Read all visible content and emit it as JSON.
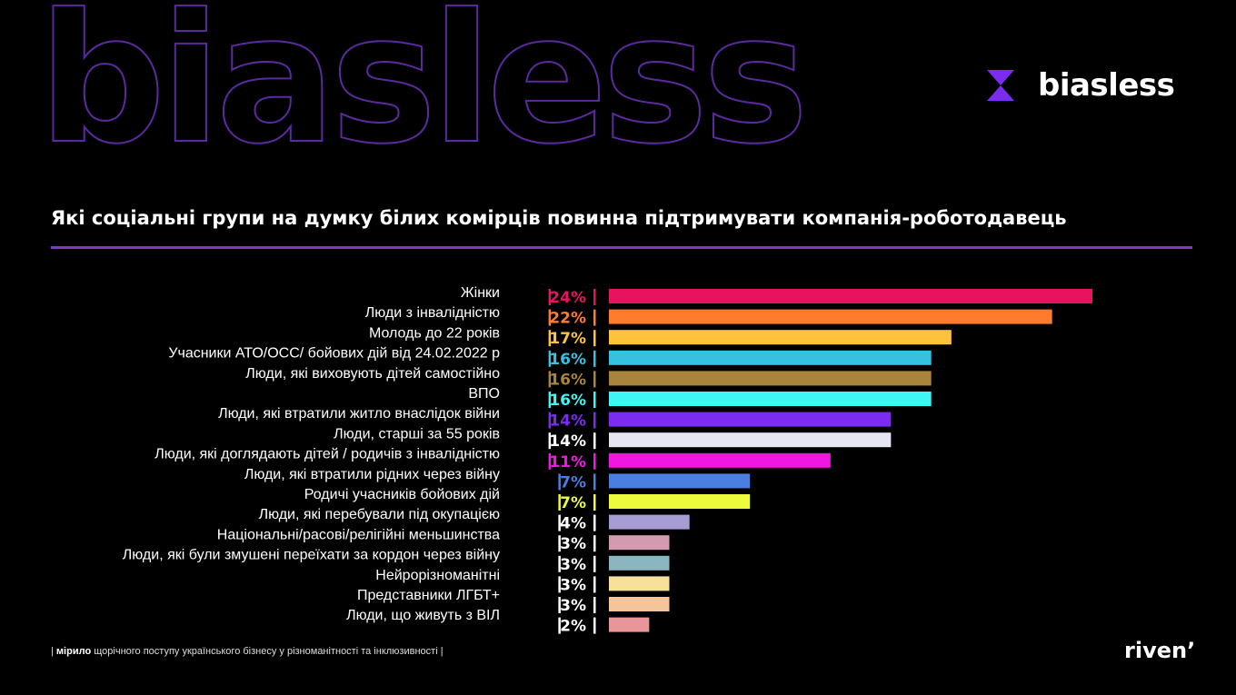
{
  "brand": {
    "wordmark": "biasless",
    "logo_text": "biasless",
    "logo_color": "#7b2cf0"
  },
  "title": "Які соціальні групи на думку білих комірців повинна підтримувати компанія-роботодавець",
  "footer": {
    "pipe_open": "|",
    "bold": "мірило",
    "text": "щорічного поступу українського бізнесу у різноманітності та інклюзивності",
    "pipe_close": "|"
  },
  "partner": "riven’",
  "chart_data": {
    "type": "bar",
    "orientation": "horizontal",
    "unit": "%",
    "xlim": [
      0,
      24
    ],
    "grid": false,
    "categories": [
      "Жінки",
      "Люди з інвалідністю",
      "Молодь до 22 років",
      "Учасники АТО/ОСС/ бойових дій від 24.02.2022 р",
      "Люди, які виховують дітей самостійно",
      "ВПО",
      "Люди, які втратили житло внаслідок війни",
      "Люди, старші за 55 років",
      "Люди, які доглядають дітей / родичів з інвалідністю",
      "Люди, які втратили рідних через війну",
      "Родичі учасників бойових дій",
      "Люди, які перебували під окупацією",
      "Національні/расові/релігійні меньшинства",
      "Люди, які були змушені переїхати за кордон через війну",
      "Нейрорізноманітні",
      "Представники ЛГБТ+",
      "Люди, що живуть з ВІЛ"
    ],
    "values": [
      24,
      22,
      17,
      16,
      16,
      16,
      14,
      14,
      11,
      7,
      7,
      4,
      3,
      3,
      3,
      3,
      2
    ],
    "value_labels": [
      "24%",
      "22%",
      "17%",
      "16%",
      "16%",
      "16%",
      "14%",
      "14%",
      "11%",
      "7%",
      "7%",
      "4%",
      "3%",
      "3%",
      "3%",
      "3%",
      "2%"
    ],
    "bar_colors": [
      "#e8135e",
      "#ff7b2e",
      "#ffc23c",
      "#36c1e0",
      "#a9843c",
      "#3ef6f4",
      "#7b2cf0",
      "#e6e6f2",
      "#f016e4",
      "#4a7ee0",
      "#ecfb3c",
      "#a89cd4",
      "#d49ab0",
      "#8bb6c0",
      "#f7e19a",
      "#f4c59a",
      "#e8969a"
    ],
    "label_colors": [
      "#e8135e",
      "#ff7b2e",
      "#ffc23c",
      "#36c1e0",
      "#a9843c",
      "#3ef6f4",
      "#7b2cf0",
      "#ffffff",
      "#f016e4",
      "#4a7ee0",
      "#ecfb3c",
      "#ffffff",
      "#ffffff",
      "#ffffff",
      "#ffffff",
      "#ffffff",
      "#ffffff"
    ]
  }
}
